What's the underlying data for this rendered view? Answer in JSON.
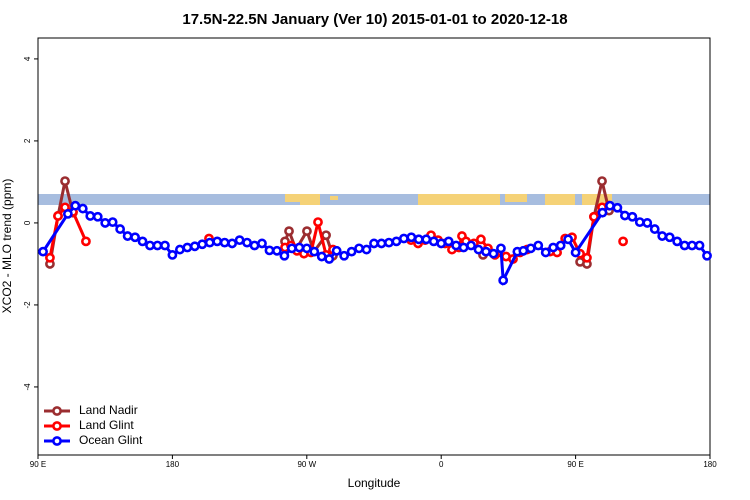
{
  "chart_data": {
    "type": "line",
    "title": "17.5N-22.5N January (Ver 10)   2015-01-01 to 2020-12-18",
    "x_label": "Longitude",
    "y_label": "XCO2 - MLO trend (ppm)",
    "xlim": [
      90,
      540
    ],
    "ylim": [
      -5.66,
      4.51
    ],
    "xticks": [
      {
        "value": 90,
        "label": "90 E"
      },
      {
        "value": 180,
        "label": "180"
      },
      {
        "value": 270,
        "label": "90 W"
      },
      {
        "value": 360,
        "label": "0"
      },
      {
        "value": 450,
        "label": "90 E"
      },
      {
        "value": 540,
        "label": "180"
      }
    ],
    "yticks": [
      -4,
      -2,
      0,
      2,
      4
    ],
    "legend": "bottom-left",
    "series": [
      {
        "name": "Land Nadir",
        "color": "#9b2d30",
        "x": [
          98,
          103.4,
          108.1,
          113.4,
          180,
          255.4,
          258.1,
          262.8,
          270.1,
          274.8,
          282.9,
          287.5,
          330,
          388,
          420,
          453,
          457.6,
          462.3,
          467.7,
          472.4
        ],
        "values": [
          -1.0,
          0.17,
          1.02,
          0.25,
          null,
          -0.45,
          -0.2,
          -0.65,
          -0.2,
          -0.7,
          -0.3,
          -0.8,
          null,
          -0.78,
          null,
          -0.95,
          -1.0,
          0.15,
          1.02,
          0.3
        ]
      },
      {
        "name": "Land Glint",
        "color": "#ff0000",
        "x": [
          98,
          103.4,
          108.1,
          113.4,
          122.1,
          150,
          204.5,
          230,
          255.4,
          259.4,
          263.4,
          268.1,
          272.8,
          277.5,
          282.9,
          287.5,
          310,
          339.8,
          344.5,
          349.2,
          353.2,
          357.9,
          362.6,
          367.2,
          371.9,
          373.9,
          376.6,
          381.9,
          386.6,
          391.3,
          396,
          403.4,
          408.1,
          412.8,
          417.5,
          425,
          432.9,
          437.6,
          443,
          447.6,
          453,
          457.6,
          462.3,
          467.7,
          472.4,
          477,
          481.8
        ],
        "values": [
          -0.85,
          0.17,
          0.38,
          0.27,
          -0.45,
          null,
          -0.38,
          null,
          -0.6,
          -0.55,
          -0.68,
          -0.75,
          -0.72,
          0.02,
          -0.78,
          -0.65,
          null,
          -0.42,
          -0.5,
          -0.42,
          -0.3,
          -0.42,
          -0.5,
          -0.65,
          -0.6,
          -0.32,
          -0.45,
          -0.5,
          -0.4,
          -0.62,
          -0.78,
          -0.82,
          -0.88,
          -0.72,
          -0.65,
          null,
          -0.7,
          -0.72,
          -0.38,
          -0.35,
          -0.75,
          -0.85,
          0.15,
          0.38,
          0.42,
          null,
          -0.45
        ]
      },
      {
        "name": "Ocean Glint",
        "color": "#0000ff",
        "x": [
          93.4,
          110,
          115,
          120,
          125,
          130,
          135,
          140,
          145,
          150,
          155,
          160,
          165,
          170,
          175,
          180,
          185,
          190,
          195,
          200,
          205,
          210,
          215,
          220,
          225,
          230,
          235,
          240,
          245,
          250,
          255,
          260,
          265,
          270,
          275,
          280,
          285,
          290,
          295,
          300,
          305,
          310,
          315,
          320,
          325,
          330,
          335,
          340,
          345,
          350,
          355,
          360,
          365,
          370,
          375,
          380,
          385,
          390,
          395,
          400,
          401.5,
          411,
          415,
          420,
          425,
          430,
          435,
          440,
          445,
          450,
          468,
          473,
          478,
          483,
          488,
          493,
          498,
          503,
          508,
          513,
          518,
          523,
          528,
          533,
          538
        ],
        "values": [
          -0.7,
          0.22,
          0.42,
          0.35,
          0.17,
          0.15,
          0.0,
          0.02,
          -0.15,
          -0.32,
          -0.35,
          -0.45,
          -0.55,
          -0.55,
          -0.55,
          -0.78,
          -0.65,
          -0.6,
          -0.57,
          -0.52,
          -0.48,
          -0.45,
          -0.48,
          -0.5,
          -0.42,
          -0.48,
          -0.55,
          -0.5,
          -0.67,
          -0.68,
          -0.8,
          -0.62,
          -0.6,
          -0.62,
          -0.7,
          -0.82,
          -0.88,
          -0.68,
          -0.8,
          -0.7,
          -0.62,
          -0.65,
          -0.5,
          -0.5,
          -0.48,
          -0.45,
          -0.38,
          -0.35,
          -0.4,
          -0.4,
          -0.45,
          -0.5,
          -0.45,
          -0.55,
          -0.6,
          -0.55,
          -0.65,
          -0.7,
          -0.75,
          -0.62,
          -1.4,
          -0.7,
          -0.68,
          -0.62,
          -0.55,
          -0.72,
          -0.6,
          -0.55,
          -0.4,
          -0.72,
          0.25,
          0.42,
          0.37,
          0.18,
          0.15,
          0.02,
          0.0,
          -0.15,
          -0.32,
          -0.35,
          -0.45,
          -0.55,
          -0.55,
          -0.55,
          -0.8
        ]
      }
    ]
  }
}
